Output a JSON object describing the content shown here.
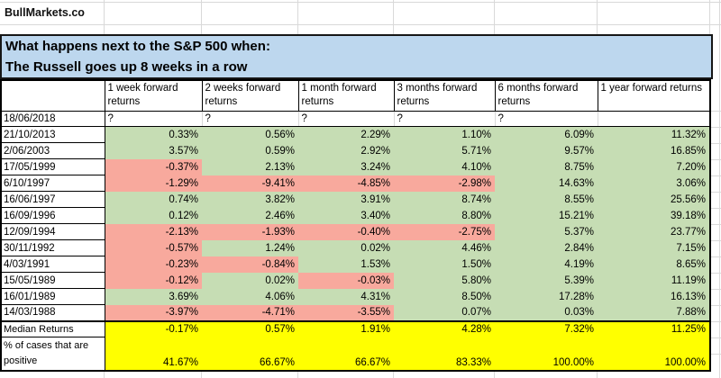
{
  "brand": "BullMarkets.co",
  "title": {
    "line1": "What happens next to the S&P 500 when:",
    "line2": "The Russell goes up 8 weeks in a row"
  },
  "table": {
    "columns": [
      "1 week forward returns",
      "2 weeks forward returns",
      "1 month forward returns",
      "3 months forward returns",
      "6 months forward returns",
      "1 year forward returns"
    ],
    "rows": [
      {
        "date": "18/06/2018",
        "values": [
          "?",
          "?",
          "?",
          "?",
          "?",
          ""
        ]
      },
      {
        "date": "21/10/2013",
        "values": [
          "0.33%",
          "0.56%",
          "2.29%",
          "1.10%",
          "6.09%",
          "11.32%"
        ]
      },
      {
        "date": "2/06/2003",
        "values": [
          "3.57%",
          "0.59%",
          "2.92%",
          "5.71%",
          "9.57%",
          "16.85%"
        ]
      },
      {
        "date": "17/05/1999",
        "values": [
          "-0.37%",
          "2.13%",
          "3.24%",
          "4.10%",
          "8.75%",
          "7.20%"
        ]
      },
      {
        "date": "6/10/1997",
        "values": [
          "-1.29%",
          "-9.41%",
          "-4.85%",
          "-2.98%",
          "14.63%",
          "3.06%"
        ]
      },
      {
        "date": "16/06/1997",
        "values": [
          "0.74%",
          "3.82%",
          "3.91%",
          "8.74%",
          "8.55%",
          "25.56%"
        ]
      },
      {
        "date": "16/09/1996",
        "values": [
          "0.12%",
          "2.46%",
          "3.40%",
          "8.80%",
          "15.21%",
          "39.18%"
        ]
      },
      {
        "date": "12/09/1994",
        "values": [
          "-2.13%",
          "-1.93%",
          "-0.40%",
          "-2.75%",
          "5.37%",
          "23.77%"
        ]
      },
      {
        "date": "30/11/1992",
        "values": [
          "-0.57%",
          "1.24%",
          "0.02%",
          "4.46%",
          "2.84%",
          "7.15%"
        ]
      },
      {
        "date": "4/03/1991",
        "values": [
          "-0.23%",
          "-0.84%",
          "1.53%",
          "1.50%",
          "4.19%",
          "8.65%"
        ]
      },
      {
        "date": "15/05/1989",
        "values": [
          "-0.12%",
          "0.02%",
          "-0.03%",
          "5.80%",
          "5.39%",
          "11.19%"
        ]
      },
      {
        "date": "16/01/1989",
        "values": [
          "3.69%",
          "4.06%",
          "4.31%",
          "8.50%",
          "17.28%",
          "16.13%"
        ]
      },
      {
        "date": "14/03/1988",
        "values": [
          "-3.97%",
          "-4.71%",
          "-3.55%",
          "0.07%",
          "0.03%",
          "7.88%"
        ]
      }
    ],
    "summary": {
      "median_label": "Median Returns",
      "median_values": [
        "-0.17%",
        "0.57%",
        "1.91%",
        "4.28%",
        "7.32%",
        "11.25%"
      ],
      "positive_label": "% of cases that are positive",
      "positive_values": [
        "41.67%",
        "66.67%",
        "66.67%",
        "83.33%",
        "100.00%",
        "100.00%"
      ]
    }
  },
  "colors": {
    "positive_fill": "#C6DDB4",
    "negative_fill": "#F8A99D",
    "summary_fill": "#FFFF00",
    "title_fill": "#BDD7EE",
    "gridline": "#D9D9D9"
  }
}
